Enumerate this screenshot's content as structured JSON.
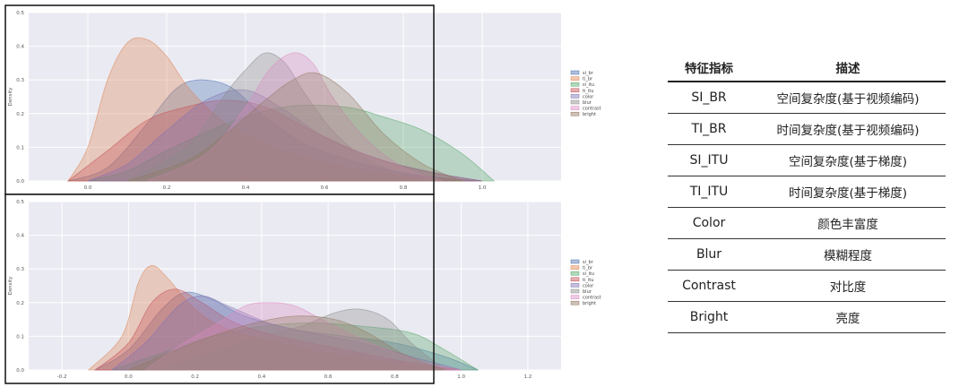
{
  "chart_data": [
    {
      "type": "area",
      "ylabel": "Density",
      "ylim": [
        0,
        0.5
      ],
      "xlim": [
        -0.15,
        1.2
      ],
      "xticks": [
        "0.0",
        "0.2",
        "0.4",
        "0.6",
        "0.8",
        "1.0"
      ],
      "yticks": [
        "0.0",
        "0.1",
        "0.2",
        "0.3",
        "0.4",
        "0.5"
      ],
      "grid": true,
      "legend_position": "right",
      "series": [
        {
          "name": "si_br",
          "color": "#4c72b0",
          "x": [
            -0.05,
            0.05,
            0.15,
            0.22,
            0.28,
            0.36,
            0.44,
            0.55,
            0.7,
            0.85,
            1.0
          ],
          "values": [
            0,
            0.04,
            0.17,
            0.27,
            0.3,
            0.28,
            0.2,
            0.11,
            0.05,
            0.015,
            0
          ]
        },
        {
          "name": "ti_br",
          "color": "#dd8452",
          "x": [
            -0.05,
            0.0,
            0.05,
            0.1,
            0.15,
            0.2,
            0.26,
            0.35,
            0.45,
            0.55,
            0.7,
            0.85,
            1.0
          ],
          "values": [
            0,
            0.1,
            0.3,
            0.41,
            0.42,
            0.37,
            0.27,
            0.17,
            0.11,
            0.07,
            0.03,
            0.01,
            0
          ]
        },
        {
          "name": "si_itu",
          "color": "#55a868",
          "x": [
            0.0,
            0.1,
            0.2,
            0.35,
            0.5,
            0.65,
            0.75,
            0.85,
            0.95,
            1.03
          ],
          "values": [
            0,
            0.03,
            0.09,
            0.17,
            0.22,
            0.22,
            0.19,
            0.15,
            0.08,
            0
          ]
        },
        {
          "name": "ti_itu",
          "color": "#c44e52",
          "x": [
            -0.05,
            0.05,
            0.15,
            0.25,
            0.35,
            0.45,
            0.55,
            0.7,
            0.85,
            1.0
          ],
          "values": [
            0,
            0.09,
            0.18,
            0.22,
            0.24,
            0.22,
            0.16,
            0.08,
            0.03,
            0
          ]
        },
        {
          "name": "color",
          "color": "#8172b3",
          "x": [
            0.0,
            0.1,
            0.2,
            0.3,
            0.4,
            0.5,
            0.6,
            0.75,
            0.9,
            1.0
          ],
          "values": [
            0,
            0.05,
            0.15,
            0.24,
            0.27,
            0.21,
            0.13,
            0.06,
            0.02,
            0
          ]
        },
        {
          "name": "blur",
          "color": "#8c8c8c",
          "x": [
            0.1,
            0.25,
            0.35,
            0.4,
            0.45,
            0.5,
            0.55,
            0.62,
            0.7,
            0.8,
            0.9
          ],
          "values": [
            0,
            0.1,
            0.26,
            0.33,
            0.38,
            0.35,
            0.26,
            0.15,
            0.07,
            0.02,
            0
          ]
        },
        {
          "name": "contrast",
          "color": "#da8bc3",
          "x": [
            0.15,
            0.3,
            0.4,
            0.46,
            0.52,
            0.57,
            0.62,
            0.7,
            0.8,
            0.9
          ],
          "values": [
            0,
            0.08,
            0.22,
            0.33,
            0.38,
            0.35,
            0.25,
            0.13,
            0.04,
            0
          ]
        },
        {
          "name": "bright",
          "color": "#937860",
          "x": [
            0.1,
            0.25,
            0.35,
            0.45,
            0.52,
            0.58,
            0.66,
            0.75,
            0.85,
            0.95
          ],
          "values": [
            0,
            0.06,
            0.14,
            0.24,
            0.3,
            0.32,
            0.26,
            0.14,
            0.05,
            0
          ]
        }
      ]
    },
    {
      "type": "area",
      "ylabel": "Density",
      "ylim": [
        0,
        0.5
      ],
      "xlim": [
        -0.3,
        1.3
      ],
      "xticks": [
        "-0.2",
        "0.0",
        "0.2",
        "0.4",
        "0.6",
        "0.8",
        "1.0",
        "1.2"
      ],
      "yticks": [
        "0.0",
        "0.1",
        "0.2",
        "0.3",
        "0.4",
        "0.5"
      ],
      "grid": true,
      "legend_position": "right",
      "series": [
        {
          "name": "si_br",
          "color": "#4c72b0",
          "x": [
            -0.1,
            0.0,
            0.1,
            0.17,
            0.25,
            0.35,
            0.5,
            0.65,
            0.8,
            0.95,
            1.05
          ],
          "values": [
            0,
            0.06,
            0.18,
            0.23,
            0.21,
            0.16,
            0.12,
            0.1,
            0.08,
            0.04,
            0
          ]
        },
        {
          "name": "ti_br",
          "color": "#dd8452",
          "x": [
            -0.12,
            -0.02,
            0.03,
            0.07,
            0.12,
            0.2,
            0.3,
            0.45,
            0.6,
            0.8,
            1.0
          ],
          "values": [
            0,
            0.1,
            0.26,
            0.31,
            0.27,
            0.18,
            0.12,
            0.08,
            0.05,
            0.02,
            0
          ]
        },
        {
          "name": "si_itu",
          "color": "#55a868",
          "x": [
            -0.05,
            0.1,
            0.25,
            0.4,
            0.55,
            0.7,
            0.85,
            0.95,
            1.05
          ],
          "values": [
            0,
            0.05,
            0.1,
            0.13,
            0.14,
            0.13,
            0.11,
            0.06,
            0
          ]
        },
        {
          "name": "ti_itu",
          "color": "#c44e52",
          "x": [
            -0.1,
            0.0,
            0.07,
            0.14,
            0.22,
            0.32,
            0.45,
            0.6,
            0.8,
            1.0
          ],
          "values": [
            0,
            0.08,
            0.2,
            0.24,
            0.2,
            0.14,
            0.1,
            0.07,
            0.03,
            0
          ]
        },
        {
          "name": "color",
          "color": "#8172b3",
          "x": [
            -0.05,
            0.05,
            0.15,
            0.22,
            0.3,
            0.42,
            0.55,
            0.7,
            0.85,
            1.0
          ],
          "values": [
            0,
            0.08,
            0.19,
            0.22,
            0.19,
            0.14,
            0.11,
            0.08,
            0.04,
            0
          ]
        },
        {
          "name": "blur",
          "color": "#8c8c8c",
          "x": [
            0.1,
            0.25,
            0.4,
            0.52,
            0.62,
            0.7,
            0.78,
            0.85,
            0.95
          ],
          "values": [
            0,
            0.05,
            0.1,
            0.13,
            0.17,
            0.18,
            0.15,
            0.08,
            0
          ]
        },
        {
          "name": "contrast",
          "color": "#da8bc3",
          "x": [
            0.05,
            0.15,
            0.27,
            0.35,
            0.42,
            0.5,
            0.6,
            0.75,
            0.9,
            1.0
          ],
          "values": [
            0,
            0.07,
            0.14,
            0.19,
            0.2,
            0.19,
            0.14,
            0.07,
            0.02,
            0
          ]
        },
        {
          "name": "bright",
          "color": "#937860",
          "x": [
            0.0,
            0.12,
            0.25,
            0.38,
            0.5,
            0.62,
            0.72,
            0.82,
            0.95
          ],
          "values": [
            0,
            0.05,
            0.1,
            0.14,
            0.16,
            0.15,
            0.11,
            0.05,
            0
          ]
        }
      ]
    }
  ],
  "table": {
    "headers": [
      "特征指标",
      "描述"
    ],
    "rows": [
      [
        "SI_BR",
        "空间复杂度(基于视频编码)"
      ],
      [
        "TI_BR",
        "时间复杂度(基于视频编码)"
      ],
      [
        "SI_ITU",
        "空间复杂度(基于梯度)"
      ],
      [
        "TI_ITU",
        "时间复杂度(基于梯度)"
      ],
      [
        "Color",
        "颜色丰富度"
      ],
      [
        "Blur",
        "模糊程度"
      ],
      [
        "Contrast",
        "对比度"
      ],
      [
        "Bright",
        "亮度"
      ]
    ]
  }
}
